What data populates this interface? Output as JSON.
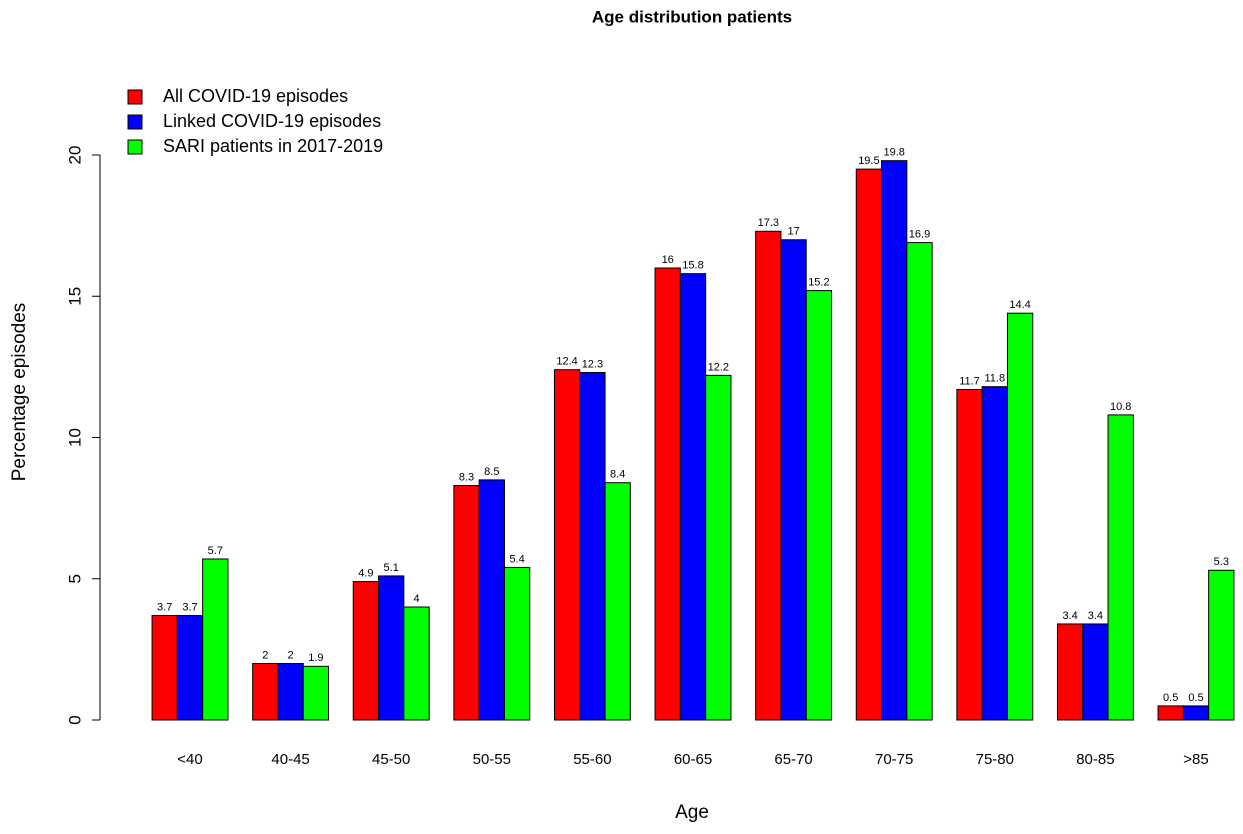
{
  "chart_data": {
    "type": "bar",
    "title": "Age distribution patients",
    "x_label": "Age",
    "y_label": "Percentage episodes",
    "categories": [
      "<40",
      "40-45",
      "45-50",
      "50-55",
      "55-60",
      "60-65",
      "65-70",
      "70-75",
      "75-80",
      "80-85",
      ">85"
    ],
    "series": [
      {
        "name": "All COVID-19 episodes",
        "color": "#ff0000",
        "values": [
          3.7,
          2,
          4.9,
          8.3,
          12.4,
          16,
          17.3,
          19.5,
          11.7,
          3.4,
          0.5
        ]
      },
      {
        "name": "Linked COVID-19 episodes",
        "color": "#0000ff",
        "values": [
          3.7,
          2,
          5.1,
          8.5,
          12.3,
          15.8,
          17,
          19.8,
          11.8,
          3.4,
          0.5
        ]
      },
      {
        "name": "SARI patients in 2017-2019",
        "color": "#00ff00",
        "values": [
          5.7,
          1.9,
          4,
          5.4,
          8.4,
          12.2,
          15.2,
          16.9,
          14.4,
          10.8,
          5.3
        ]
      }
    ],
    "ylim": [
      0,
      20
    ],
    "yticks": [
      0,
      5,
      10,
      15,
      20
    ],
    "legend": "top-left"
  }
}
